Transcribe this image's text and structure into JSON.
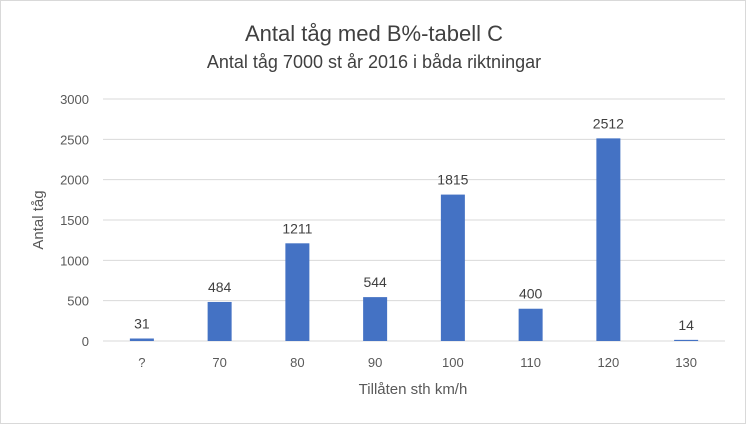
{
  "chart_data": {
    "type": "bar",
    "title": "Antal tåg med B%-tabell C",
    "subtitle": "Antal tåg 7000 st år 2016 i båda riktningar",
    "xlabel": "Tillåten sth km/h",
    "ylabel": "Antal tåg",
    "categories": [
      "?",
      "70",
      "80",
      "90",
      "100",
      "110",
      "120",
      "130"
    ],
    "values": [
      31,
      484,
      1211,
      544,
      1815,
      400,
      2512,
      14
    ],
    "ylim": [
      0,
      3000
    ],
    "yticks": [
      0,
      500,
      1000,
      1500,
      2000,
      2500,
      3000
    ],
    "grid": true,
    "legend": "none",
    "bar_color": "#4472C4",
    "grid_color": "#d9d9d9"
  }
}
